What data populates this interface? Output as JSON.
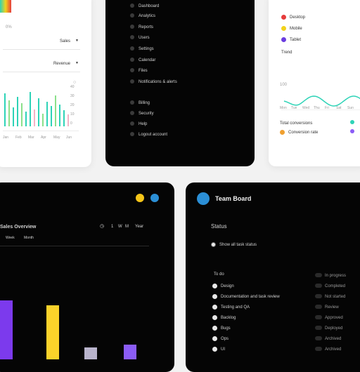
{
  "analytics_card": {
    "top_label": "0%",
    "select1": {
      "value": "Sales"
    },
    "select2": {
      "value": "Revenue"
    },
    "axis_labels": [
      "40",
      "30",
      "20",
      "10",
      "0"
    ],
    "x_labels": [
      "Jan",
      "Feb",
      "Mar",
      "Apr",
      "May",
      "Jun"
    ],
    "bar_heights": [
      0.78,
      0.62,
      0.45,
      0.7,
      0.55,
      0.35,
      0.82,
      0.4,
      0.66,
      0.3,
      0.58,
      0.48,
      0.74,
      0.52,
      0.38,
      0.28
    ],
    "colors": {
      "teal": "#2ed3b7",
      "green": "#8be08b",
      "pink": "#f2b3c6"
    }
  },
  "dark_menu_card": {
    "items": [
      "Dashboard",
      "Analytics",
      "Reports",
      "Users",
      "Settings",
      "Calendar",
      "Files",
      "Notifications & alerts",
      "Billing",
      "Security",
      "Help",
      "Logout account"
    ]
  },
  "legend_card": {
    "legend": [
      {
        "label": "Desktop",
        "color": "#e63c3c"
      },
      {
        "label": "Mobile",
        "color": "#f2d21b"
      },
      {
        "label": "Tablet",
        "color": "#6a3cdf"
      }
    ],
    "trend_title": "Trend",
    "axis_left": "100",
    "trend_axis": [
      "Mon",
      "Tue",
      "Wed",
      "Thu",
      "Fri",
      "Sat",
      "Sun"
    ],
    "summary_label": "Total conversions",
    "summary_value": "Conversion rate",
    "line_color": "#2ed3b7",
    "accents": {
      "orange": "#f0a030",
      "teal": "#2ed3b7",
      "purple": "#8b5cf6"
    }
  },
  "performance_card": {
    "title": "Sales Overview",
    "controls": [
      "1",
      "W",
      "M",
      "Year"
    ],
    "tabs": [
      "Week",
      "Month"
    ],
    "bars": [
      {
        "height": 0.6,
        "color": "#7c3aed"
      },
      {
        "height": 0.55,
        "color": "#fbd22a"
      },
      {
        "height": 0.12,
        "color": "#b9b4cc"
      },
      {
        "height": 0.15,
        "color": "#8b5cf6"
      }
    ],
    "icons": {
      "yellow": "#f5c518",
      "blue": "#2b8fd6"
    }
  },
  "task_card": {
    "app_name": "Team Board",
    "section_title": "Status",
    "primary_option": "Show all task status",
    "group_label": "To do",
    "tasks": [
      "Design",
      "Documentation and task review",
      "Testing and QA",
      "Backlog",
      "Bugs",
      "Ops",
      "UI"
    ],
    "right_column": [
      "In progress",
      "Completed",
      "Not started",
      "Review",
      "Approved",
      "Deployed",
      "Archived",
      "Archived"
    ],
    "logo_color": "#2b8fd6"
  }
}
